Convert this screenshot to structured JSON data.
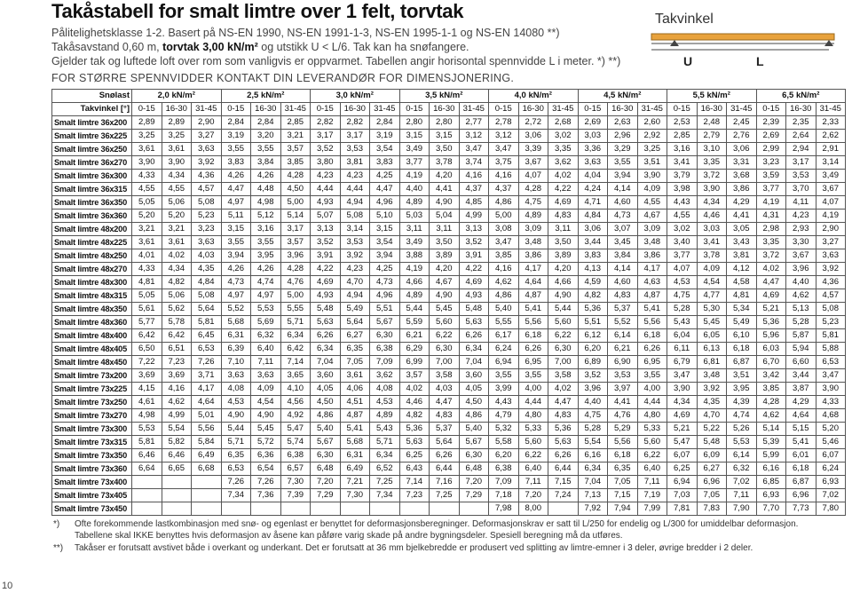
{
  "header": {
    "title": "Takåstabell for smalt limtre over 1 felt, torvtak",
    "line1": "Pålitelighetsklasse 1-2. Basert på NS-EN 1990, NS-EN 1991-1-3, NS-EN 1995-1-1 og NS-EN 14080 **)",
    "line2": [
      "Takåsavstand 0,60 m, ",
      "torvtak 3,00 kN/m²",
      " og utstikk U < L/6. Tak kan ha snøfangere."
    ],
    "line3": "Gjelder tak og luftede loft over rom som vanligvis er oppvarmet. Tabellen angir horisontal spennvidde L i meter. *) **)",
    "line4": "FOR STØRRE SPENNVIDDER KONTAKT DIN LEVERANDØR FOR DIMENSJONERING."
  },
  "diagram": {
    "label": "Takvinkel",
    "u": "U",
    "l": "L"
  },
  "table": {
    "corner": [
      "Snølast",
      "Takvinkel [°]"
    ],
    "loads": [
      "2,0 kN/m²",
      "2,5 kN/m²",
      "3,0 kN/m²",
      "3,5 kN/m²",
      "4,0 kN/m²",
      "4,5 kN/m²",
      "5,5 kN/m²",
      "6,5 kN/m²"
    ],
    "angles": [
      "0-15",
      "16-30",
      "31-45"
    ],
    "rows": [
      {
        "name": "Smalt limtre 36x200",
        "cells": [
          "2,89",
          "2,89",
          "2,90",
          "2,84",
          "2,84",
          "2,85",
          "2,82",
          "2,82",
          "2,84",
          "2,80",
          "2,80",
          "2,77",
          "2,78",
          "2,72",
          "2,68",
          "2,69",
          "2,63",
          "2,60",
          "2,53",
          "2,48",
          "2,45",
          "2,39",
          "2,35",
          "2,33"
        ]
      },
      {
        "name": "Smalt limtre 36x225",
        "cells": [
          "3,25",
          "3,25",
          "3,27",
          "3,19",
          "3,20",
          "3,21",
          "3,17",
          "3,17",
          "3,19",
          "3,15",
          "3,15",
          "3,12",
          "3,12",
          "3,06",
          "3,02",
          "3,03",
          "2,96",
          "2,92",
          "2,85",
          "2,79",
          "2,76",
          "2,69",
          "2,64",
          "2,62"
        ]
      },
      {
        "name": "Smalt limtre 36x250",
        "cells": [
          "3,61",
          "3,61",
          "3,63",
          "3,55",
          "3,55",
          "3,57",
          "3,52",
          "3,53",
          "3,54",
          "3,49",
          "3,50",
          "3,47",
          "3,47",
          "3,39",
          "3,35",
          "3,36",
          "3,29",
          "3,25",
          "3,16",
          "3,10",
          "3,06",
          "2,99",
          "2,94",
          "2,91"
        ]
      },
      {
        "name": "Smalt limtre 36x270",
        "cells": [
          "3,90",
          "3,90",
          "3,92",
          "3,83",
          "3,84",
          "3,85",
          "3,80",
          "3,81",
          "3,83",
          "3,77",
          "3,78",
          "3,74",
          "3,75",
          "3,67",
          "3,62",
          "3,63",
          "3,55",
          "3,51",
          "3,41",
          "3,35",
          "3,31",
          "3,23",
          "3,17",
          "3,14"
        ]
      },
      {
        "name": "Smalt limtre 36x300",
        "cells": [
          "4,33",
          "4,34",
          "4,36",
          "4,26",
          "4,26",
          "4,28",
          "4,23",
          "4,23",
          "4,25",
          "4,19",
          "4,20",
          "4,16",
          "4,16",
          "4,07",
          "4,02",
          "4,04",
          "3,94",
          "3,90",
          "3,79",
          "3,72",
          "3,68",
          "3,59",
          "3,53",
          "3,49"
        ]
      },
      {
        "name": "Smalt limtre 36x315",
        "cells": [
          "4,55",
          "4,55",
          "4,57",
          "4,47",
          "4,48",
          "4,50",
          "4,44",
          "4,44",
          "4,47",
          "4,40",
          "4,41",
          "4,37",
          "4,37",
          "4,28",
          "4,22",
          "4,24",
          "4,14",
          "4,09",
          "3,98",
          "3,90",
          "3,86",
          "3,77",
          "3,70",
          "3,67"
        ]
      },
      {
        "name": "Smalt limtre 36x350",
        "cells": [
          "5,05",
          "5,06",
          "5,08",
          "4,97",
          "4,98",
          "5,00",
          "4,93",
          "4,94",
          "4,96",
          "4,89",
          "4,90",
          "4,85",
          "4,86",
          "4,75",
          "4,69",
          "4,71",
          "4,60",
          "4,55",
          "4,43",
          "4,34",
          "4,29",
          "4,19",
          "4,11",
          "4,07"
        ]
      },
      {
        "name": "Smalt limtre 36x360",
        "cells": [
          "5,20",
          "5,20",
          "5,23",
          "5,11",
          "5,12",
          "5,14",
          "5,07",
          "5,08",
          "5,10",
          "5,03",
          "5,04",
          "4,99",
          "5,00",
          "4,89",
          "4,83",
          "4,84",
          "4,73",
          "4,67",
          "4,55",
          "4,46",
          "4,41",
          "4,31",
          "4,23",
          "4,19"
        ]
      },
      {
        "name": "Smalt limtre 48x200",
        "cells": [
          "3,21",
          "3,21",
          "3,23",
          "3,15",
          "3,16",
          "3,17",
          "3,13",
          "3,14",
          "3,15",
          "3,11",
          "3,11",
          "3,13",
          "3,08",
          "3,09",
          "3,11",
          "3,06",
          "3,07",
          "3,09",
          "3,02",
          "3,03",
          "3,05",
          "2,98",
          "2,93",
          "2,90"
        ]
      },
      {
        "name": "Smalt limtre 48x225",
        "cells": [
          "3,61",
          "3,61",
          "3,63",
          "3,55",
          "3,55",
          "3,57",
          "3,52",
          "3,53",
          "3,54",
          "3,49",
          "3,50",
          "3,52",
          "3,47",
          "3,48",
          "3,50",
          "3,44",
          "3,45",
          "3,48",
          "3,40",
          "3,41",
          "3,43",
          "3,35",
          "3,30",
          "3,27"
        ]
      },
      {
        "name": "Smalt limtre 48x250",
        "cells": [
          "4,01",
          "4,02",
          "4,03",
          "3,94",
          "3,95",
          "3,96",
          "3,91",
          "3,92",
          "3,94",
          "3,88",
          "3,89",
          "3,91",
          "3,85",
          "3,86",
          "3,89",
          "3,83",
          "3,84",
          "3,86",
          "3,77",
          "3,78",
          "3,81",
          "3,72",
          "3,67",
          "3,63"
        ]
      },
      {
        "name": "Smalt limtre 48x270",
        "cells": [
          "4,33",
          "4,34",
          "4,35",
          "4,26",
          "4,26",
          "4,28",
          "4,22",
          "4,23",
          "4,25",
          "4,19",
          "4,20",
          "4,22",
          "4,16",
          "4,17",
          "4,20",
          "4,13",
          "4,14",
          "4,17",
          "4,07",
          "4,09",
          "4,12",
          "4,02",
          "3,96",
          "3,92"
        ]
      },
      {
        "name": "Smalt limtre 48x300",
        "cells": [
          "4,81",
          "4,82",
          "4,84",
          "4,73",
          "4,74",
          "4,76",
          "4,69",
          "4,70",
          "4,73",
          "4,66",
          "4,67",
          "4,69",
          "4,62",
          "4,64",
          "4,66",
          "4,59",
          "4,60",
          "4,63",
          "4,53",
          "4,54",
          "4,58",
          "4,47",
          "4,40",
          "4,36"
        ]
      },
      {
        "name": "Smalt limtre 48x315",
        "cells": [
          "5,05",
          "5,06",
          "5,08",
          "4,97",
          "4,97",
          "5,00",
          "4,93",
          "4,94",
          "4,96",
          "4,89",
          "4,90",
          "4,93",
          "4,86",
          "4,87",
          "4,90",
          "4,82",
          "4,83",
          "4,87",
          "4,75",
          "4,77",
          "4,81",
          "4,69",
          "4,62",
          "4,57"
        ]
      },
      {
        "name": "Smalt limtre 48x350",
        "cells": [
          "5,61",
          "5,62",
          "5,64",
          "5,52",
          "5,53",
          "5,55",
          "5,48",
          "5,49",
          "5,51",
          "5,44",
          "5,45",
          "5,48",
          "5,40",
          "5,41",
          "5,44",
          "5,36",
          "5,37",
          "5,41",
          "5,28",
          "5,30",
          "5,34",
          "5,21",
          "5,13",
          "5,08"
        ]
      },
      {
        "name": "Smalt limtre 48x360",
        "cells": [
          "5,77",
          "5,78",
          "5,81",
          "5,68",
          "5,69",
          "5,71",
          "5,63",
          "5,64",
          "5,67",
          "5,59",
          "5,60",
          "5,63",
          "5,55",
          "5,56",
          "5,60",
          "5,51",
          "5,52",
          "5,56",
          "5,43",
          "5,45",
          "5,49",
          "5,36",
          "5,28",
          "5,23"
        ]
      },
      {
        "name": "Smalt limtre 48x400",
        "cells": [
          "6,42",
          "6,42",
          "6,45",
          "6,31",
          "6,32",
          "6,34",
          "6,26",
          "6,27",
          "6,30",
          "6,21",
          "6,22",
          "6,26",
          "6,17",
          "6,18",
          "6,22",
          "6,12",
          "6,14",
          "6,18",
          "6,04",
          "6,05",
          "6,10",
          "5,96",
          "5,87",
          "5,81"
        ]
      },
      {
        "name": "Smalt limtre 48x405",
        "cells": [
          "6,50",
          "6,51",
          "6,53",
          "6,39",
          "6,40",
          "6,42",
          "6,34",
          "6,35",
          "6,38",
          "6,29",
          "6,30",
          "6,34",
          "6,24",
          "6,26",
          "6,30",
          "6,20",
          "6,21",
          "6,26",
          "6,11",
          "6,13",
          "6,18",
          "6,03",
          "5,94",
          "5,88"
        ]
      },
      {
        "name": "Smalt limtre 48x450",
        "cells": [
          "7,22",
          "7,23",
          "7,26",
          "7,10",
          "7,11",
          "7,14",
          "7,04",
          "7,05",
          "7,09",
          "6,99",
          "7,00",
          "7,04",
          "6,94",
          "6,95",
          "7,00",
          "6,89",
          "6,90",
          "6,95",
          "6,79",
          "6,81",
          "6,87",
          "6,70",
          "6,60",
          "6,53"
        ]
      },
      {
        "name": "Smalt limtre 73x200",
        "cells": [
          "3,69",
          "3,69",
          "3,71",
          "3,63",
          "3,63",
          "3,65",
          "3,60",
          "3,61",
          "3,62",
          "3,57",
          "3,58",
          "3,60",
          "3,55",
          "3,55",
          "3,58",
          "3,52",
          "3,53",
          "3,55",
          "3,47",
          "3,48",
          "3,51",
          "3,42",
          "3,44",
          "3,47"
        ]
      },
      {
        "name": "Smalt limtre 73x225",
        "cells": [
          "4,15",
          "4,16",
          "4,17",
          "4,08",
          "4,09",
          "4,10",
          "4,05",
          "4,06",
          "4,08",
          "4,02",
          "4,03",
          "4,05",
          "3,99",
          "4,00",
          "4,02",
          "3,96",
          "3,97",
          "4,00",
          "3,90",
          "3,92",
          "3,95",
          "3,85",
          "3,87",
          "3,90"
        ]
      },
      {
        "name": "Smalt limtre 73x250",
        "cells": [
          "4,61",
          "4,62",
          "4,64",
          "4,53",
          "4,54",
          "4,56",
          "4,50",
          "4,51",
          "4,53",
          "4,46",
          "4,47",
          "4,50",
          "4,43",
          "4,44",
          "4,47",
          "4,40",
          "4,41",
          "4,44",
          "4,34",
          "4,35",
          "4,39",
          "4,28",
          "4,29",
          "4,33"
        ]
      },
      {
        "name": "Smalt limtre 73x270",
        "cells": [
          "4,98",
          "4,99",
          "5,01",
          "4,90",
          "4,90",
          "4,92",
          "4,86",
          "4,87",
          "4,89",
          "4,82",
          "4,83",
          "4,86",
          "4,79",
          "4,80",
          "4,83",
          "4,75",
          "4,76",
          "4,80",
          "4,69",
          "4,70",
          "4,74",
          "4,62",
          "4,64",
          "4,68"
        ]
      },
      {
        "name": "Smalt limtre 73x300",
        "cells": [
          "5,53",
          "5,54",
          "5,56",
          "5,44",
          "5,45",
          "5,47",
          "5,40",
          "5,41",
          "5,43",
          "5,36",
          "5,37",
          "5,40",
          "5,32",
          "5,33",
          "5,36",
          "5,28",
          "5,29",
          "5,33",
          "5,21",
          "5,22",
          "5,26",
          "5,14",
          "5,15",
          "5,20"
        ]
      },
      {
        "name": "Smalt limtre 73x315",
        "cells": [
          "5,81",
          "5,82",
          "5,84",
          "5,71",
          "5,72",
          "5,74",
          "5,67",
          "5,68",
          "5,71",
          "5,63",
          "5,64",
          "5,67",
          "5,58",
          "5,60",
          "5,63",
          "5,54",
          "5,56",
          "5,60",
          "5,47",
          "5,48",
          "5,53",
          "5,39",
          "5,41",
          "5,46"
        ]
      },
      {
        "name": "Smalt limtre 73x350",
        "cells": [
          "6,46",
          "6,46",
          "6,49",
          "6,35",
          "6,36",
          "6,38",
          "6,30",
          "6,31",
          "6,34",
          "6,25",
          "6,26",
          "6,30",
          "6,20",
          "6,22",
          "6,26",
          "6,16",
          "6,18",
          "6,22",
          "6,07",
          "6,09",
          "6,14",
          "5,99",
          "6,01",
          "6,07"
        ]
      },
      {
        "name": "Smalt limtre 73x360",
        "cells": [
          "6,64",
          "6,65",
          "6,68",
          "6,53",
          "6,54",
          "6,57",
          "6,48",
          "6,49",
          "6,52",
          "6,43",
          "6,44",
          "6,48",
          "6,38",
          "6,40",
          "6,44",
          "6,34",
          "6,35",
          "6,40",
          "6,25",
          "6,27",
          "6,32",
          "6,16",
          "6,18",
          "6,24"
        ]
      },
      {
        "name": "Smalt limtre 73x400",
        "cells": [
          null,
          null,
          null,
          "7,26",
          "7,26",
          "7,30",
          "7,20",
          "7,21",
          "7,25",
          "7,14",
          "7,16",
          "7,20",
          "7,09",
          "7,11",
          "7,15",
          "7,04",
          "7,05",
          "7,11",
          "6,94",
          "6,96",
          "7,02",
          "6,85",
          "6,87",
          "6,93"
        ]
      },
      {
        "name": "Smalt limtre 73x405",
        "cells": [
          null,
          null,
          null,
          "7,34",
          "7,36",
          "7,39",
          "7,29",
          "7,30",
          "7,34",
          "7,23",
          "7,25",
          "7,29",
          "7,18",
          "7,20",
          "7,24",
          "7,13",
          "7,15",
          "7,19",
          "7,03",
          "7,05",
          "7,11",
          "6,93",
          "6,96",
          "7,02"
        ]
      },
      {
        "name": "Smalt limtre 73x450",
        "cells": [
          null,
          null,
          null,
          null,
          null,
          null,
          null,
          null,
          null,
          null,
          null,
          null,
          "7,98",
          "8,00",
          null,
          "7,92",
          "7,94",
          "7,99",
          "7,81",
          "7,83",
          "7,90",
          "7,70",
          "7,73",
          "7,80"
        ]
      }
    ]
  },
  "notes": [
    {
      "mark": "*)",
      "text": "Ofte forekommende lastkombinasjon med snø- og egenlast er benyttet for deformasjonsberegninger. Deformasjonskrav er satt til L/250 for endelig og L/300 for umiddelbar deformasjon. Tabellene skal IKKE benyttes hvis deformasjon av åsene kan påføre varig skade på andre bygningsdeler. Spesiell beregning må da utføres."
    },
    {
      "mark": "**)",
      "text": "Takåser er forutsatt avstivet både i overkant og underkant. Det er forutsatt at 36 mm bjelkebredde er produsert ved splitting av limtre-emner i 3 deler, øvrige bredder i 2 deler."
    }
  ],
  "page_number": "10"
}
